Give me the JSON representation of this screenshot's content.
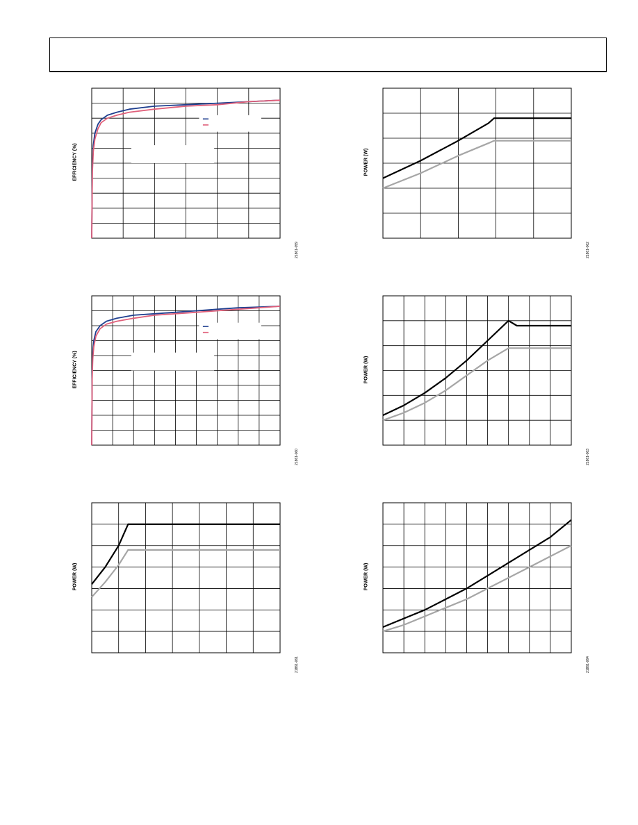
{
  "page": {
    "header_title": ""
  },
  "colors": {
    "blue": "#1f3f8f",
    "pink": "#e0607a",
    "black": "#000000",
    "gray": "#a6a6a6"
  },
  "chart_data": [
    {
      "id": "fig-top-left",
      "type": "line",
      "ylabel": "EFFICIENCY (%)",
      "figure_id": "21861-059",
      "xlim": [
        0,
        6
      ],
      "ylim": [
        0,
        100
      ],
      "grid": true,
      "x_divisions": 6,
      "y_divisions": 10,
      "legend_placement": "top-right",
      "series": [
        {
          "color": "blue",
          "x": [
            0,
            0.02,
            0.05,
            0.1,
            0.2,
            0.3,
            0.5,
            0.8,
            1.2,
            2,
            3,
            4,
            5,
            6
          ],
          "y": [
            0,
            48,
            62,
            70,
            76,
            79,
            82,
            84,
            86,
            88,
            89,
            90,
            91,
            92
          ]
        },
        {
          "color": "pink",
          "x": [
            0,
            0.02,
            0.05,
            0.1,
            0.2,
            0.3,
            0.5,
            0.8,
            1.2,
            2,
            3,
            4,
            5,
            6
          ],
          "y": [
            0,
            44,
            58,
            66,
            73,
            77,
            80,
            82,
            84,
            86,
            88,
            89,
            91,
            92
          ]
        }
      ]
    },
    {
      "id": "fig-top-right",
      "type": "line",
      "ylabel": "POWER (W)",
      "figure_id": "21861-062",
      "xlim": [
        0,
        5
      ],
      "ylim": [
        0,
        6
      ],
      "grid": true,
      "x_divisions": 5,
      "y_divisions": 6,
      "series": [
        {
          "color": "black",
          "x": [
            0,
            1,
            2,
            2.8,
            2.95,
            5
          ],
          "y": [
            2.4,
            3.1,
            3.9,
            4.6,
            4.8,
            4.8
          ]
        },
        {
          "color": "gray",
          "x": [
            0,
            1,
            2,
            2.8,
            2.95,
            5
          ],
          "y": [
            2.0,
            2.6,
            3.3,
            3.8,
            3.9,
            3.9
          ]
        }
      ]
    },
    {
      "id": "fig-middle-left",
      "type": "line",
      "ylabel": "EFFICIENCY (%)",
      "figure_id": "21861-060",
      "xlim": [
        0,
        9
      ],
      "ylim": [
        0,
        100
      ],
      "grid": true,
      "x_divisions": 9,
      "y_divisions": 10,
      "legend_placement": "top-right",
      "series": [
        {
          "color": "blue",
          "x": [
            0,
            0.02,
            0.05,
            0.1,
            0.2,
            0.4,
            0.7,
            1.2,
            2,
            3,
            4,
            5,
            6,
            7,
            8,
            9
          ],
          "y": [
            0,
            48,
            62,
            70,
            76,
            80,
            83,
            85,
            87,
            88,
            89,
            90,
            91,
            92,
            92.5,
            93
          ]
        },
        {
          "color": "pink",
          "x": [
            0,
            0.02,
            0.05,
            0.1,
            0.2,
            0.4,
            0.7,
            1.2,
            2,
            3,
            4,
            5,
            6,
            7,
            8,
            9
          ],
          "y": [
            0,
            44,
            58,
            66,
            73,
            78,
            81,
            83,
            85,
            87,
            88,
            89,
            90,
            91,
            92,
            93
          ]
        }
      ]
    },
    {
      "id": "fig-middle-right",
      "type": "line",
      "ylabel": "POWER (W)",
      "figure_id": "21861-063",
      "xlim": [
        0,
        9
      ],
      "ylim": [
        0,
        6
      ],
      "grid": true,
      "x_divisions": 9,
      "y_divisions": 6,
      "series": [
        {
          "color": "black",
          "x": [
            0,
            1,
            2,
            3,
            4,
            5,
            6,
            6.4,
            9
          ],
          "y": [
            1.2,
            1.6,
            2.1,
            2.7,
            3.4,
            4.2,
            5.0,
            4.8,
            4.8
          ]
        },
        {
          "color": "gray",
          "x": [
            0,
            1,
            2,
            3,
            4,
            5,
            6,
            6.4,
            9
          ],
          "y": [
            1.0,
            1.3,
            1.7,
            2.2,
            2.8,
            3.4,
            3.9,
            3.9,
            3.9
          ]
        }
      ]
    },
    {
      "id": "fig-bottom-left",
      "type": "line",
      "ylabel": "POWER (W)",
      "figure_id": "21861-061",
      "xlim": [
        0,
        7
      ],
      "ylim": [
        0,
        7
      ],
      "grid": true,
      "x_divisions": 7,
      "y_divisions": 7,
      "series": [
        {
          "color": "black",
          "x": [
            0,
            0.5,
            1,
            1.35,
            2,
            7
          ],
          "y": [
            3.2,
            4.0,
            5.0,
            6.0,
            6.0,
            6.0
          ]
        },
        {
          "color": "gray",
          "x": [
            0,
            0.5,
            1,
            1.35,
            2,
            7
          ],
          "y": [
            2.6,
            3.3,
            4.1,
            4.8,
            4.8,
            4.8
          ]
        }
      ]
    },
    {
      "id": "fig-bottom-right",
      "type": "line",
      "ylabel": "POWER (W)",
      "figure_id": "21861-064",
      "xlim": [
        0,
        9
      ],
      "ylim": [
        0,
        7
      ],
      "grid": true,
      "x_divisions": 9,
      "y_divisions": 7,
      "series": [
        {
          "color": "black",
          "x": [
            0,
            1,
            2,
            3,
            4,
            5,
            6,
            7,
            8,
            9
          ],
          "y": [
            1.2,
            1.6,
            2.0,
            2.5,
            3.0,
            3.6,
            4.2,
            4.8,
            5.4,
            6.2
          ]
        },
        {
          "color": "gray",
          "x": [
            0,
            1,
            2,
            3,
            4,
            5,
            6,
            7,
            8,
            9
          ],
          "y": [
            1.0,
            1.3,
            1.7,
            2.1,
            2.5,
            3.0,
            3.5,
            4.0,
            4.5,
            5.0
          ]
        }
      ]
    }
  ]
}
